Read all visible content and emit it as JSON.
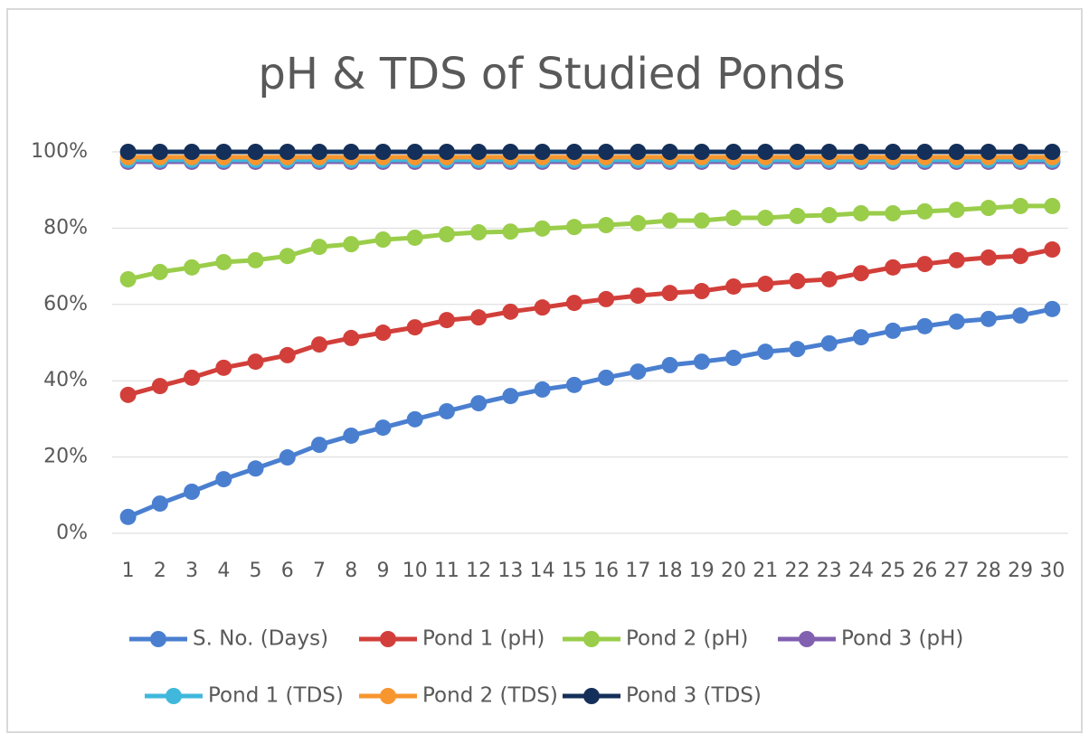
{
  "chart_data": {
    "type": "line",
    "title": "pH & TDS of Studied Ponds",
    "categories": [
      "1",
      "2",
      "3",
      "4",
      "5",
      "6",
      "7",
      "8",
      "9",
      "10",
      "11",
      "12",
      "13",
      "14",
      "15",
      "16",
      "17",
      "18",
      "19",
      "20",
      "21",
      "22",
      "23",
      "24",
      "25",
      "26",
      "27",
      "28",
      "29",
      "30"
    ],
    "series": [
      {
        "name": "S. No. (Days)",
        "color": "#4a7fd0",
        "values": [
          4.3,
          7.8,
          10.9,
          14.2,
          17,
          19.9,
          23.2,
          25.6,
          27.7,
          29.9,
          32,
          34.1,
          36,
          37.7,
          38.9,
          40.8,
          42.4,
          44.1,
          45,
          46,
          47.6,
          48.3,
          49.8,
          51.4,
          53.1,
          54.3,
          55.5,
          56.2,
          57.1,
          58.8
        ]
      },
      {
        "name": "Pond 1 (pH)",
        "color": "#d23f3a",
        "values": [
          36.3,
          38.6,
          40.8,
          43.4,
          45,
          46.7,
          49.5,
          51.2,
          52.6,
          54,
          55.9,
          56.6,
          58.1,
          59.2,
          60.4,
          61.4,
          62.3,
          63,
          63.5,
          64.7,
          65.4,
          66.1,
          66.6,
          68.2,
          69.7,
          70.6,
          71.6,
          72.3,
          72.7,
          74.4
        ]
      },
      {
        "name": "Pond 2 (pH)",
        "color": "#9acd4a",
        "values": [
          66.6,
          68.5,
          69.7,
          71.1,
          71.6,
          72.7,
          75.1,
          75.8,
          77,
          77.5,
          78.4,
          78.9,
          79.1,
          79.9,
          80.3,
          80.8,
          81.3,
          82,
          82,
          82.7,
          82.7,
          83.2,
          83.4,
          83.9,
          83.9,
          84.4,
          84.8,
          85.3,
          85.8,
          85.8
        ]
      },
      {
        "name": "Pond 3 (pH)",
        "color": "#8160b0",
        "values": [
          97.4,
          97.4,
          97.4,
          97.4,
          97.4,
          97.4,
          97.4,
          97.4,
          97.4,
          97.4,
          97.4,
          97.4,
          97.4,
          97.4,
          97.4,
          97.4,
          97.4,
          97.4,
          97.4,
          97.4,
          97.4,
          97.4,
          97.4,
          97.4,
          97.4,
          97.4,
          97.4,
          97.4,
          97.4,
          97.4
        ]
      },
      {
        "name": "Pond 1 (TDS)",
        "color": "#3fb8dc",
        "values": [
          97.9,
          97.9,
          97.9,
          97.9,
          97.9,
          97.9,
          97.9,
          97.9,
          97.9,
          97.9,
          97.9,
          97.9,
          97.9,
          97.9,
          97.9,
          97.9,
          97.9,
          97.9,
          97.9,
          97.9,
          97.9,
          97.9,
          97.9,
          97.9,
          97.9,
          97.9,
          97.9,
          97.9,
          97.9,
          97.9
        ]
      },
      {
        "name": "Pond 2 (TDS)",
        "color": "#f7962f",
        "values": [
          98.6,
          98.6,
          98.6,
          98.6,
          98.6,
          98.6,
          98.6,
          98.6,
          98.6,
          98.6,
          98.6,
          98.6,
          98.6,
          98.6,
          98.6,
          98.6,
          98.6,
          98.6,
          98.6,
          98.6,
          98.6,
          98.6,
          98.6,
          98.6,
          98.6,
          98.6,
          98.6,
          98.6,
          98.6,
          98.6
        ]
      },
      {
        "name": "Pond 3 (TDS)",
        "color": "#14305a",
        "values": [
          100,
          100,
          100,
          100,
          100,
          100,
          100,
          100,
          100,
          100,
          100,
          100,
          100,
          100,
          100,
          100,
          100,
          100,
          100,
          100,
          100,
          100,
          100,
          100,
          100,
          100,
          100,
          100,
          100,
          100
        ]
      }
    ],
    "ylim": [
      0,
      100
    ],
    "yticks": [
      {
        "value": 0,
        "label": "0%"
      },
      {
        "value": 20,
        "label": "20%"
      },
      {
        "value": 40,
        "label": "40%"
      },
      {
        "value": 60,
        "label": "60%"
      },
      {
        "value": 80,
        "label": "80%"
      },
      {
        "value": 100,
        "label": "100%"
      }
    ],
    "grid": true,
    "legend": "bottom"
  }
}
